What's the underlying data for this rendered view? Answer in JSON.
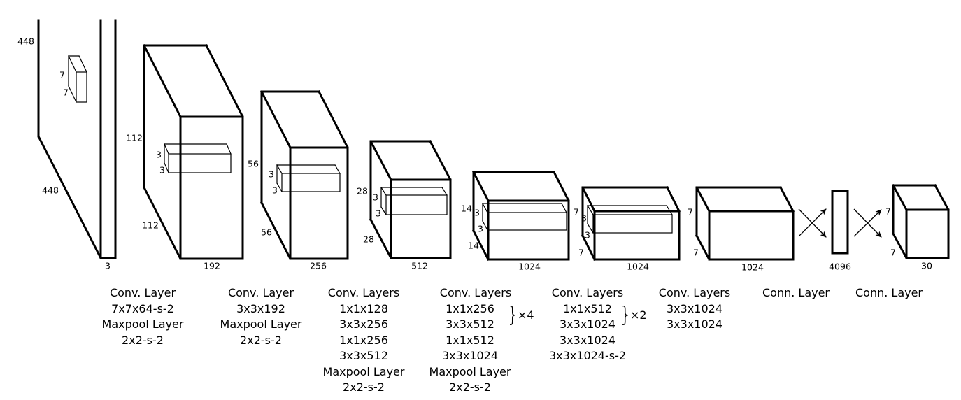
{
  "blocks": [
    {
      "height": "448",
      "width": "448",
      "channels": "3",
      "kernel": [
        "7",
        "7"
      ]
    },
    {
      "height": "112",
      "width": "112",
      "channels": "192",
      "kernel": [
        "3",
        "3"
      ]
    },
    {
      "height": "56",
      "width": "56",
      "channels": "256",
      "kernel": [
        "3",
        "3"
      ]
    },
    {
      "height": "28",
      "width": "28",
      "channels": "512",
      "kernel": [
        "3",
        "3"
      ]
    },
    {
      "height": "14",
      "width": "14",
      "channels": "1024",
      "kernel": [
        "3",
        "3"
      ]
    },
    {
      "height": "7",
      "width": "7",
      "channels": "1024",
      "kernel": [
        "3",
        "3"
      ]
    },
    {
      "height": "7",
      "width": "7",
      "channels": "1024"
    },
    {
      "channels": "4096"
    },
    {
      "height": "7",
      "width": "7",
      "channels": "30"
    }
  ],
  "captions": [
    {
      "lines": [
        "Conv. Layer",
        "7x7x64-s-2",
        "Maxpool Layer",
        "2x2-s-2"
      ]
    },
    {
      "lines": [
        "Conv. Layer",
        "3x3x192",
        "Maxpool Layer",
        "2x2-s-2"
      ]
    },
    {
      "lines": [
        "Conv. Layers",
        "1x1x128",
        "3x3x256",
        "1x1x256",
        "3x3x512",
        "Maxpool Layer",
        "2x2-s-2"
      ]
    },
    {
      "lines": [
        "Conv. Layers",
        "1x1x256",
        "3x3x512",
        "1x1x512",
        "3x3x1024",
        "Maxpool Layer",
        "2x2-s-2"
      ],
      "repeat": "×4"
    },
    {
      "lines": [
        "Conv. Layers",
        "1x1x512",
        "3x3x1024",
        "3x3x1024",
        "3x3x1024-s-2"
      ],
      "repeat": "×2"
    },
    {
      "lines": [
        "Conv. Layers",
        "3x3x1024",
        "3x3x1024"
      ]
    },
    {
      "lines": [
        "Conn. Layer"
      ]
    },
    {
      "lines": [
        "Conn. Layer"
      ]
    }
  ]
}
